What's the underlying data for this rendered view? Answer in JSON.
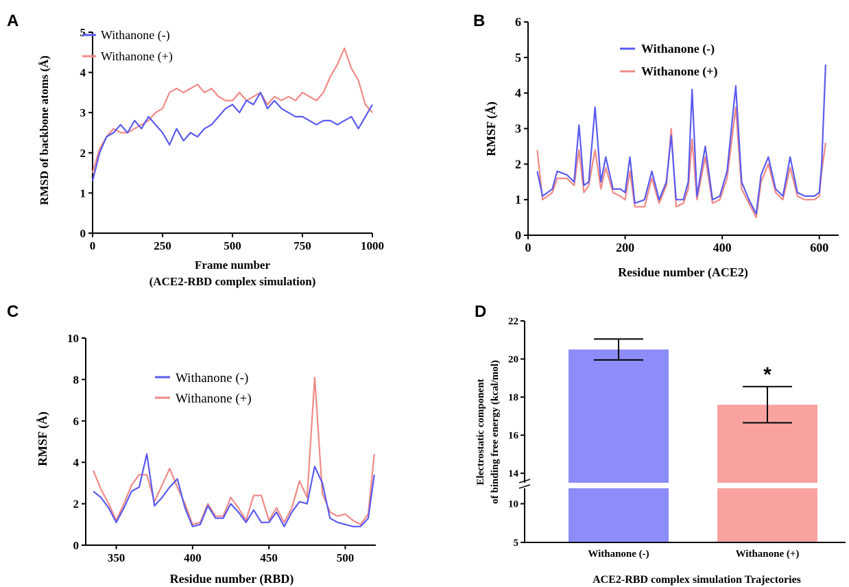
{
  "colors": {
    "blue": "#5a5af0",
    "red": "#f08a86",
    "bar_blue": "#8c8cfa",
    "bar_red": "#f9a3a1"
  },
  "chart_data": [
    {
      "panel": "A",
      "type": "line",
      "xlabel": "Frame number",
      "xlabel2": "(ACE2-RBD complex simulation)",
      "ylabel": "RMSD of backbone atoms (Å)",
      "xlim": [
        0,
        1000
      ],
      "ylim": [
        0,
        5
      ],
      "xticks": [
        "0",
        "250",
        "500",
        "750",
        "1000"
      ],
      "yticks": [
        "0",
        "1",
        "2",
        "3",
        "4",
        "5"
      ],
      "legend": [
        "Withanone (-)",
        "Withanone (+)"
      ],
      "series": [
        {
          "name": "Withanone (-)",
          "color": "blue",
          "x": [
            0,
            25,
            50,
            75,
            100,
            125,
            150,
            175,
            200,
            225,
            250,
            275,
            300,
            325,
            350,
            375,
            400,
            425,
            450,
            475,
            500,
            525,
            550,
            575,
            600,
            625,
            650,
            675,
            700,
            725,
            750,
            775,
            800,
            825,
            850,
            875,
            900,
            925,
            950,
            975,
            1000
          ],
          "y": [
            1.3,
            2.0,
            2.4,
            2.5,
            2.7,
            2.5,
            2.8,
            2.6,
            2.9,
            2.7,
            2.5,
            2.2,
            2.6,
            2.3,
            2.5,
            2.4,
            2.6,
            2.7,
            2.9,
            3.1,
            3.2,
            3.0,
            3.3,
            3.2,
            3.5,
            3.1,
            3.3,
            3.1,
            3.0,
            2.9,
            2.9,
            2.8,
            2.7,
            2.8,
            2.8,
            2.7,
            2.8,
            2.9,
            2.6,
            2.9,
            3.2
          ]
        },
        {
          "name": "Withanone (+)",
          "color": "red",
          "x": [
            0,
            25,
            50,
            75,
            100,
            125,
            150,
            175,
            200,
            225,
            250,
            275,
            300,
            325,
            350,
            375,
            400,
            425,
            450,
            475,
            500,
            525,
            550,
            575,
            600,
            625,
            650,
            675,
            700,
            725,
            750,
            775,
            800,
            825,
            850,
            875,
            900,
            925,
            950,
            975,
            1000
          ],
          "y": [
            1.5,
            2.1,
            2.4,
            2.6,
            2.5,
            2.5,
            2.6,
            2.7,
            2.8,
            3.0,
            3.1,
            3.5,
            3.6,
            3.5,
            3.6,
            3.7,
            3.5,
            3.6,
            3.4,
            3.3,
            3.3,
            3.5,
            3.3,
            3.4,
            3.5,
            3.2,
            3.4,
            3.3,
            3.4,
            3.3,
            3.5,
            3.4,
            3.3,
            3.5,
            3.9,
            4.2,
            4.6,
            4.1,
            3.8,
            3.2,
            3.0
          ]
        }
      ]
    },
    {
      "panel": "B",
      "type": "line",
      "xlabel": "Residue number (ACE2)",
      "ylabel": "RMSF (Å)",
      "xlim": [
        0,
        640
      ],
      "ylim": [
        0,
        6
      ],
      "xticks": [
        "0",
        "200",
        "400",
        "600"
      ],
      "yticks": [
        "0",
        "1",
        "2",
        "3",
        "4",
        "5",
        "6"
      ],
      "legend": [
        "Withanone (-)",
        "Withanone (+)"
      ],
      "series": [
        {
          "name": "Withanone (-)",
          "color": "blue",
          "x": [
            19,
            30,
            50,
            60,
            80,
            95,
            105,
            115,
            125,
            138,
            150,
            160,
            175,
            190,
            200,
            210,
            220,
            240,
            255,
            270,
            285,
            295,
            305,
            320,
            330,
            338,
            348,
            365,
            380,
            395,
            410,
            428,
            440,
            455,
            470,
            480,
            495,
            510,
            525,
            540,
            555,
            570,
            590,
            600,
            605,
            613
          ],
          "y": [
            1.8,
            1.1,
            1.3,
            1.8,
            1.7,
            1.5,
            3.1,
            1.4,
            1.5,
            3.6,
            1.5,
            2.2,
            1.3,
            1.3,
            1.2,
            2.2,
            0.9,
            1.0,
            1.8,
            1.0,
            1.5,
            2.8,
            1.0,
            1.0,
            1.5,
            4.1,
            1.1,
            2.5,
            1.0,
            1.1,
            1.8,
            4.2,
            1.5,
            1.0,
            0.6,
            1.7,
            2.2,
            1.3,
            1.1,
            2.2,
            1.2,
            1.1,
            1.1,
            1.2,
            2.0,
            4.8
          ]
        },
        {
          "name": "Withanone (+)",
          "color": "red",
          "x": [
            19,
            30,
            50,
            60,
            80,
            95,
            105,
            115,
            125,
            138,
            150,
            160,
            175,
            190,
            200,
            210,
            220,
            240,
            255,
            270,
            285,
            295,
            305,
            320,
            330,
            338,
            348,
            365,
            380,
            395,
            410,
            428,
            440,
            455,
            470,
            480,
            495,
            510,
            525,
            540,
            555,
            570,
            590,
            600,
            605,
            613
          ],
          "y": [
            2.4,
            1.0,
            1.2,
            1.6,
            1.6,
            1.4,
            2.4,
            1.2,
            1.4,
            2.4,
            1.3,
            1.9,
            1.2,
            1.1,
            1.0,
            1.8,
            0.8,
            0.8,
            1.6,
            0.9,
            1.4,
            3.0,
            0.8,
            0.9,
            1.3,
            2.7,
            1.0,
            2.2,
            0.9,
            1.0,
            1.6,
            3.6,
            1.3,
            0.9,
            0.5,
            1.5,
            2.0,
            1.2,
            1.0,
            1.9,
            1.1,
            1.0,
            1.0,
            1.1,
            1.8,
            2.6
          ]
        }
      ]
    },
    {
      "panel": "C",
      "type": "line",
      "xlabel": "Residue number (RBD)",
      "ylabel": "RMSF (Å)",
      "xlim": [
        330,
        520
      ],
      "ylim": [
        0,
        10
      ],
      "xticks": [
        "350",
        "400",
        "450",
        "500"
      ],
      "yticks": [
        "0",
        "2",
        "4",
        "6",
        "8",
        "10"
      ],
      "legend": [
        "Withanone (-)",
        "Withanone (+)"
      ],
      "series": [
        {
          "name": "Withanone (-)",
          "color": "blue",
          "x": [
            335,
            340,
            345,
            350,
            355,
            360,
            365,
            370,
            375,
            380,
            385,
            390,
            395,
            400,
            405,
            410,
            415,
            420,
            425,
            430,
            435,
            440,
            445,
            450,
            455,
            460,
            465,
            470,
            475,
            480,
            485,
            490,
            495,
            500,
            505,
            510,
            515,
            519
          ],
          "y": [
            2.6,
            2.3,
            1.8,
            1.1,
            1.8,
            2.6,
            2.8,
            4.4,
            1.9,
            2.3,
            2.8,
            3.2,
            1.8,
            0.9,
            1.0,
            1.9,
            1.3,
            1.3,
            2.0,
            1.6,
            1.1,
            1.7,
            1.1,
            1.1,
            1.6,
            0.9,
            1.6,
            2.1,
            2.0,
            3.8,
            3.0,
            1.3,
            1.1,
            1.0,
            0.9,
            0.9,
            1.3,
            3.4
          ]
        },
        {
          "name": "Withanone (+)",
          "color": "red",
          "x": [
            335,
            340,
            345,
            350,
            355,
            360,
            365,
            370,
            375,
            380,
            385,
            390,
            395,
            400,
            405,
            410,
            415,
            420,
            425,
            430,
            435,
            440,
            445,
            450,
            455,
            460,
            465,
            470,
            475,
            480,
            485,
            490,
            495,
            500,
            505,
            510,
            515,
            519
          ],
          "y": [
            3.6,
            2.7,
            2.0,
            1.2,
            2.0,
            2.9,
            3.4,
            3.4,
            2.1,
            2.9,
            3.7,
            2.8,
            2.0,
            1.0,
            1.1,
            2.0,
            1.4,
            1.4,
            2.3,
            1.8,
            1.2,
            2.4,
            2.4,
            1.2,
            1.8,
            1.1,
            1.8,
            3.1,
            2.3,
            8.1,
            2.5,
            1.6,
            1.4,
            1.5,
            1.2,
            1.0,
            1.5,
            4.4
          ]
        }
      ]
    },
    {
      "panel": "D",
      "type": "bar",
      "xlabel": "ACE2-RBD complex simulation Trajectories",
      "ylabel": "Electrostatic component",
      "ylabel2": "of binding free energy (kcal/mol)",
      "categories": [
        "Withanone (-)",
        "Withanone (+)"
      ],
      "values": [
        20.5,
        17.6
      ],
      "errors": [
        0.55,
        0.95
      ],
      "annotations": [
        "",
        "*"
      ],
      "yticks_upper": [
        "14",
        "16",
        "18",
        "20",
        "22"
      ],
      "yticks_lower": [
        "5",
        "10"
      ],
      "axis_break": [
        12,
        13.5
      ]
    }
  ]
}
